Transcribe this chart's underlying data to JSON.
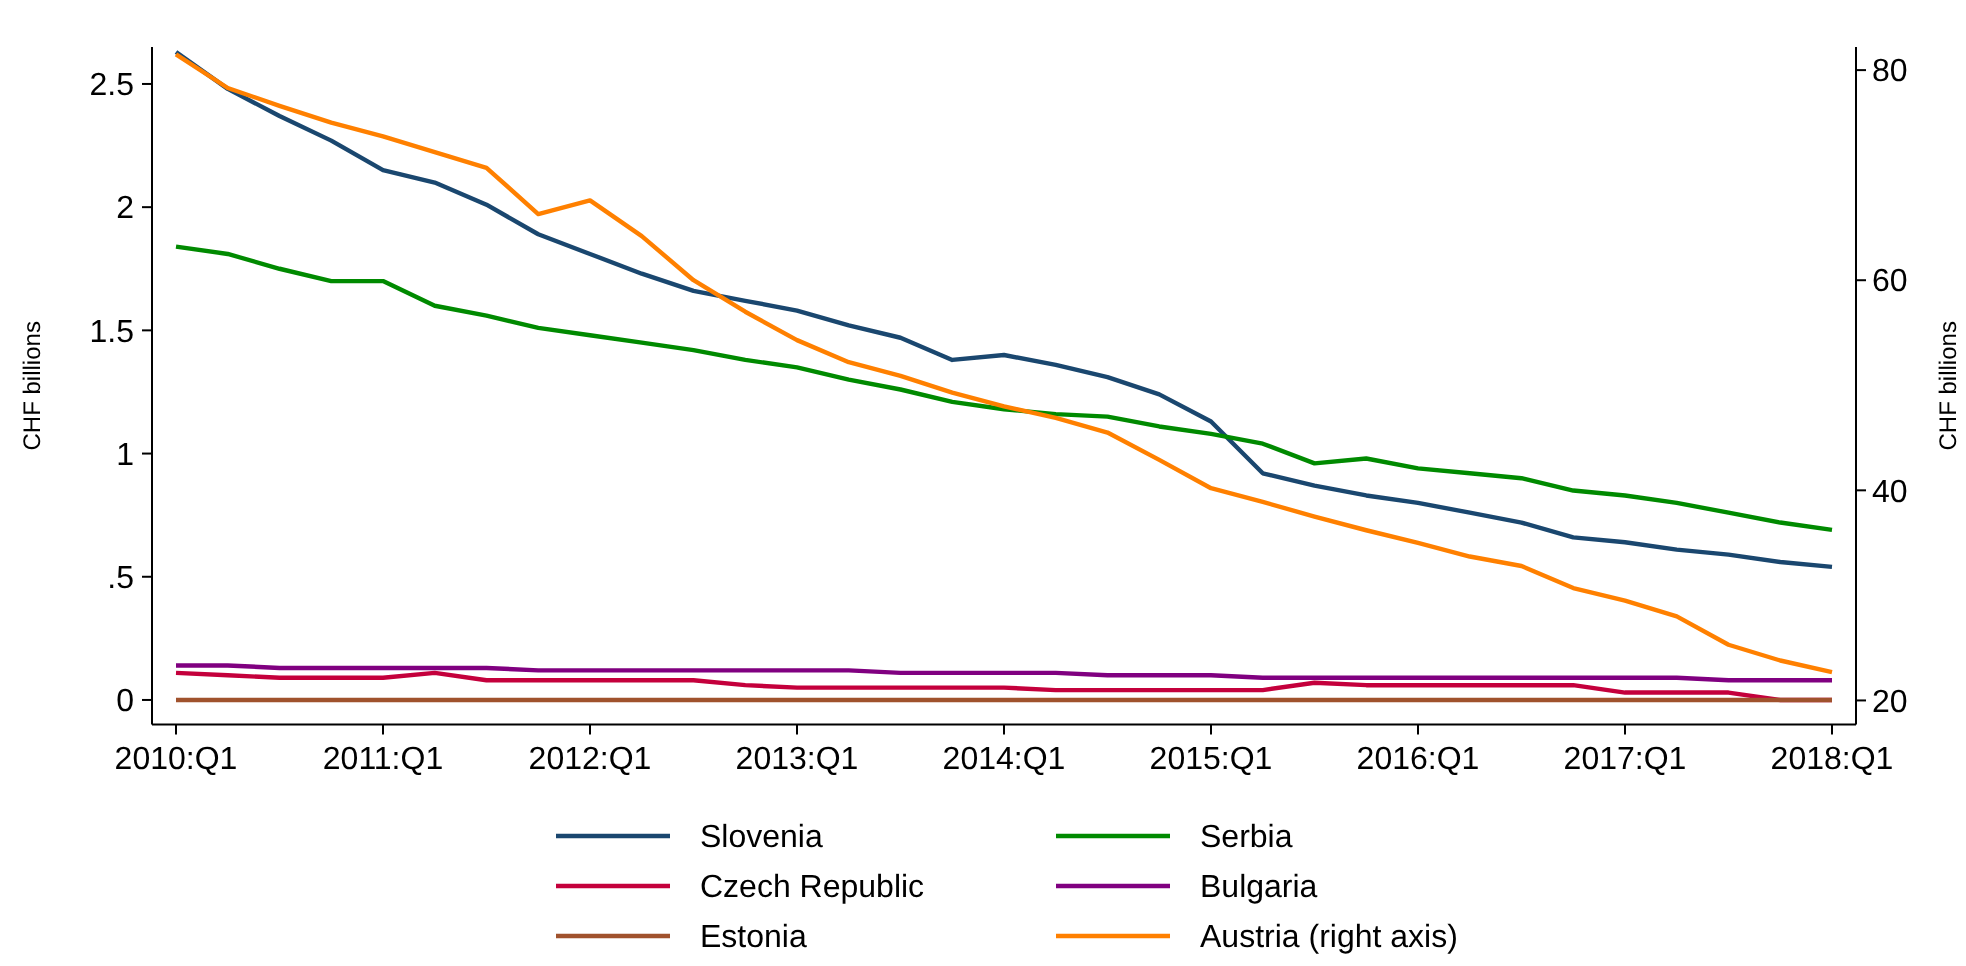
{
  "chart_data": {
    "type": "line",
    "ylabel": "CHF billions",
    "y2label": "CHF billions",
    "categories": [
      "2010:Q1",
      null,
      null,
      null,
      "2011:Q1",
      null,
      null,
      null,
      "2012:Q1",
      null,
      null,
      null,
      "2013:Q1",
      null,
      null,
      null,
      "2014:Q1",
      null,
      null,
      null,
      "2015:Q1",
      null,
      null,
      null,
      "2016:Q1",
      null,
      null,
      null,
      "2017:Q1",
      null,
      null,
      null,
      "2018:Q1"
    ],
    "ylim": [
      -0.1,
      2.65
    ],
    "yticks": [
      0,
      {
        "value": 0.5,
        "label": ".5"
      },
      1,
      1.5,
      2,
      2.5
    ],
    "y2lim": [
      17.7,
      82.2
    ],
    "y2ticks": [
      20,
      40,
      60,
      80
    ],
    "grid": false,
    "legend": "bottom",
    "marker": "none",
    "line_style": "solid",
    "series": [
      {
        "name": "Slovenia",
        "color": "#1a476f",
        "values": [
          2.63,
          2.48,
          2.37,
          2.27,
          2.15,
          2.1,
          2.01,
          1.89,
          1.81,
          1.73,
          1.66,
          1.62,
          1.58,
          1.52,
          1.47,
          1.38,
          1.4,
          1.36,
          1.31,
          1.24,
          1.13,
          0.92,
          0.87,
          0.83,
          0.8,
          0.76,
          0.72,
          0.66,
          0.64,
          0.61,
          0.59,
          0.56,
          0.54
        ]
      },
      {
        "name": "Serbia",
        "color": "#008a00",
        "values": [
          1.84,
          1.81,
          1.75,
          1.7,
          1.7,
          1.6,
          1.56,
          1.51,
          1.48,
          1.45,
          1.42,
          1.38,
          1.35,
          1.3,
          1.26,
          1.21,
          1.18,
          1.16,
          1.15,
          1.11,
          1.08,
          1.04,
          0.96,
          0.98,
          0.94,
          0.92,
          0.9,
          0.85,
          0.83,
          0.8,
          0.76,
          0.72,
          0.69
        ]
      },
      {
        "name": "Czech Republic",
        "color": "#c4003c",
        "values": [
          0.11,
          0.1,
          0.09,
          0.09,
          0.09,
          0.11,
          0.08,
          0.08,
          0.08,
          0.08,
          0.08,
          0.06,
          0.05,
          0.05,
          0.05,
          0.05,
          0.05,
          0.04,
          0.04,
          0.04,
          0.04,
          0.04,
          0.07,
          0.06,
          0.06,
          0.06,
          0.06,
          0.06,
          0.03,
          0.03,
          0.03,
          0,
          0
        ]
      },
      {
        "name": "Bulgaria",
        "color": "#800080",
        "values": [
          0.14,
          0.14,
          0.13,
          0.13,
          0.13,
          0.13,
          0.13,
          0.12,
          0.12,
          0.12,
          0.12,
          0.12,
          0.12,
          0.12,
          0.11,
          0.11,
          0.11,
          0.11,
          0.1,
          0.1,
          0.1,
          0.09,
          0.09,
          0.09,
          0.09,
          0.09,
          0.09,
          0.09,
          0.09,
          0.09,
          0.08,
          0.08,
          0.08
        ]
      },
      {
        "name": "Estonia",
        "color": "#a0522d",
        "values": [
          0,
          0,
          0,
          0,
          0,
          0,
          0,
          0,
          0,
          0,
          0,
          0,
          0,
          0,
          0,
          0,
          0,
          0,
          0,
          0,
          0,
          0,
          0,
          0,
          0,
          0,
          0,
          0,
          0,
          0,
          0,
          0,
          0
        ]
      },
      {
        "name": "Austria (right axis)",
        "color": "#ff8000",
        "axis": "y2",
        "values": [
          81.5,
          78.3,
          76.6,
          75,
          73.7,
          72.2,
          70.7,
          66.3,
          67.6,
          64.2,
          60,
          57,
          54.3,
          52.2,
          50.9,
          49.3,
          48,
          46.9,
          45.5,
          42.9,
          40.2,
          38.9,
          37.5,
          36.2,
          35,
          33.7,
          32.8,
          30.7,
          29.5,
          28,
          25.3,
          23.8,
          22.7
        ]
      }
    ]
  }
}
